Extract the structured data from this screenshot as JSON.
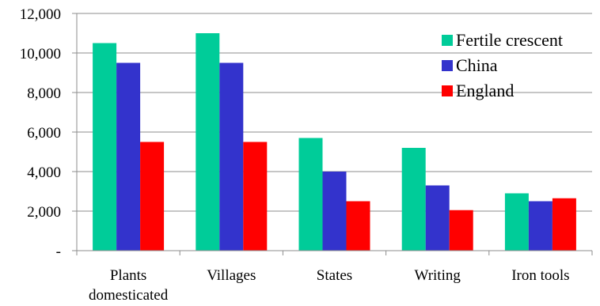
{
  "chart_data": {
    "type": "bar",
    "title": "",
    "xlabel": "",
    "ylabel": "",
    "categories": [
      [
        "Plants",
        "domesticated"
      ],
      [
        "Villages"
      ],
      [
        "States"
      ],
      [
        "Writing"
      ],
      [
        "Iron tools"
      ]
    ],
    "series": [
      {
        "name": "Fertile crescent",
        "color": "#00CC99",
        "values": [
          10500,
          11000,
          5700,
          5200,
          2900
        ]
      },
      {
        "name": "China",
        "color": "#3333CC",
        "values": [
          9500,
          9500,
          4000,
          3300,
          2500
        ]
      },
      {
        "name": "England",
        "color": "#FF0000",
        "values": [
          5500,
          5500,
          2500,
          2050,
          2650
        ]
      }
    ],
    "ylim": [
      0,
      12000
    ],
    "yticks": [
      0,
      2000,
      4000,
      6000,
      8000,
      10000,
      12000
    ],
    "ytick_labels": [
      "-",
      "2,000",
      "4,000",
      "6,000",
      "8,000",
      "10,000",
      "12,000"
    ],
    "grid": true,
    "legend_position": "top-right"
  }
}
